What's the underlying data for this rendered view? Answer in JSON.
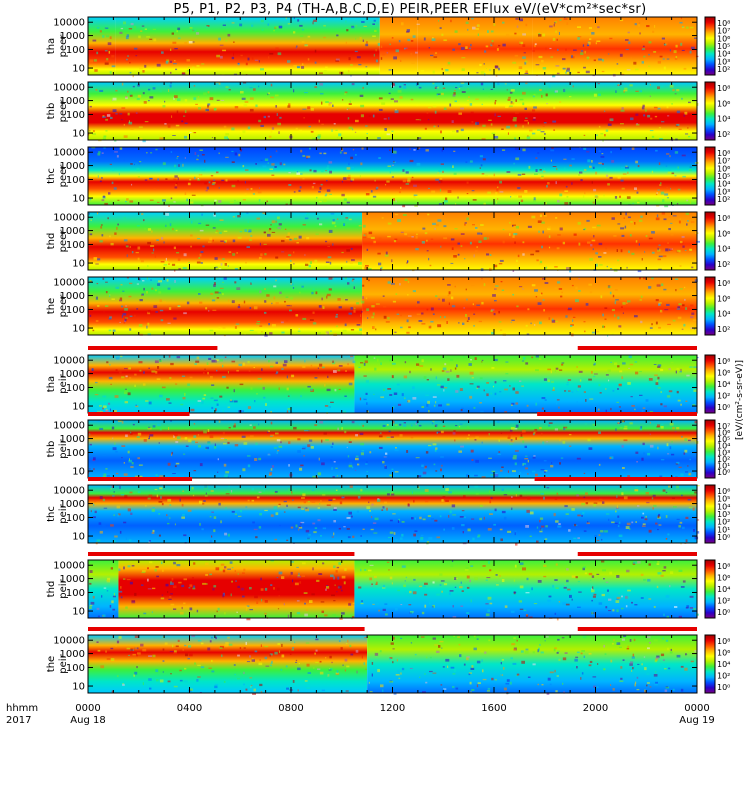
{
  "chart_data": {
    "type": "heatmap",
    "title": "P5, P1, P2, P3, P4 (TH-A,B,C,D,E) PEIR,PEER EFlux eV/(eV*cm²*sec*sr)",
    "y_ticks": [
      "10000",
      "1000",
      "100",
      "10"
    ],
    "x_ticks": [
      "0000",
      "0400",
      "0800",
      "1200",
      "1600",
      "2000",
      "0000"
    ],
    "x_tick_hours": [
      0,
      4,
      8,
      12,
      16,
      20,
      24
    ],
    "x_date_labels": [
      "Aug 18",
      "Aug 19"
    ],
    "x_row_labels": [
      "hhmm",
      "2017"
    ],
    "colorbar_label": "eV/(cm²-s-sr-eV)",
    "colorbar_axis_label": "[eV/(cm²-s-sr-eV)]",
    "panels": [
      {
        "line1": "tha",
        "line2": "peer",
        "colorbar_ticks": [
          "10⁸",
          "10⁷",
          "10⁶",
          "10⁵",
          "10⁴",
          "10³",
          "10²"
        ]
      },
      {
        "line1": "thb",
        "line2": "peer",
        "colorbar_ticks": [
          "10⁸",
          "10⁶",
          "10⁴",
          "10²"
        ]
      },
      {
        "line1": "thc",
        "line2": "peer",
        "colorbar_ticks": [
          "10⁸",
          "10⁷",
          "10⁶",
          "10⁵",
          "10⁴",
          "10³",
          "10²"
        ]
      },
      {
        "line1": "thd",
        "line2": "peer",
        "colorbar_ticks": [
          "10⁸",
          "10⁶",
          "10⁴",
          "10²"
        ]
      },
      {
        "line1": "the",
        "line2": "peer",
        "colorbar_ticks": [
          "10⁸",
          "10⁶",
          "10⁴",
          "10²"
        ]
      },
      {
        "line1": "tha",
        "line2": "peir",
        "colorbar_ticks": [
          "10⁸",
          "10⁶",
          "10⁴",
          "10²",
          "10⁰"
        ]
      },
      {
        "line1": "thb",
        "line2": "peir",
        "colorbar_ticks": [
          "10⁷",
          "10⁶",
          "10⁵",
          "10⁴",
          "10³",
          "10²",
          "10¹",
          "10⁰"
        ]
      },
      {
        "line1": "thc",
        "line2": "peir",
        "colorbar_ticks": [
          "10⁶",
          "10⁵",
          "10⁴",
          "10³",
          "10²",
          "10¹",
          "10⁰"
        ]
      },
      {
        "line1": "thd",
        "line2": "peir",
        "colorbar_ticks": [
          "10⁸",
          "10⁶",
          "10⁴",
          "10²",
          "10⁰"
        ]
      },
      {
        "line1": "the",
        "line2": "peir",
        "colorbar_ticks": [
          "10⁸",
          "10⁶",
          "10⁴",
          "10²",
          "10⁰"
        ]
      }
    ],
    "colormap": [
      "#ffffff",
      "#7a0080",
      "#2a00c8",
      "#0050ff",
      "#00b4ff",
      "#00e6c8",
      "#3cf03c",
      "#b4f000",
      "#ffff00",
      "#ffb400",
      "#ff5000",
      "#e60000",
      "#a00000"
    ]
  }
}
